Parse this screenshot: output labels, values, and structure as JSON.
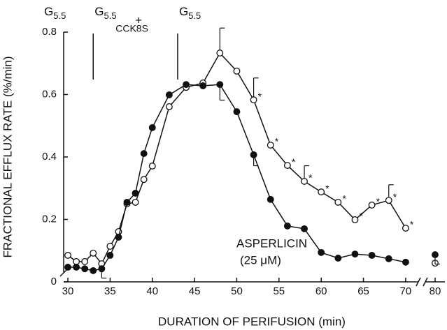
{
  "chart_data": {
    "type": "line",
    "x_label": "DURATION OF PERIFUSION (min)",
    "y_label": "FRACTIONAL EFFLUX RATE (%/min)",
    "xlim": [
      29.5,
      81
    ],
    "x_break": [
      71.5,
      79
    ],
    "xticks": [
      30,
      35,
      40,
      45,
      50,
      55,
      60,
      65,
      70,
      80
    ],
    "ylim": [
      0,
      0.8
    ],
    "yticks": [
      0,
      0.2,
      0.4,
      0.6,
      0.8
    ],
    "x": [
      30,
      31,
      32,
      33,
      34,
      35,
      36,
      37,
      38,
      39,
      40,
      42,
      44,
      46,
      48,
      50,
      52,
      54,
      56,
      58,
      60,
      62,
      64,
      66,
      68,
      70,
      80
    ],
    "series": [
      {
        "color": "#111111",
        "marker": "open",
        "error_side": "up",
        "values": [
          0.085,
          0.065,
          0.065,
          0.092,
          0.058,
          0.114,
          0.161,
          0.25,
          0.255,
          0.328,
          0.371,
          0.561,
          0.623,
          0.637,
          0.733,
          0.675,
          0.583,
          0.438,
          0.373,
          0.322,
          0.288,
          0.255,
          0.199,
          0.246,
          0.261,
          0.172,
          0.06
        ],
        "errors": [
          null,
          null,
          null,
          null,
          null,
          null,
          null,
          null,
          null,
          null,
          null,
          null,
          null,
          null,
          0.08,
          null,
          0.07,
          null,
          null,
          0.05,
          null,
          null,
          null,
          null,
          0.05,
          null,
          null
        ],
        "significant": [
          false,
          false,
          false,
          false,
          false,
          false,
          false,
          false,
          false,
          false,
          false,
          false,
          false,
          false,
          false,
          false,
          true,
          true,
          true,
          true,
          true,
          true,
          true,
          true,
          true,
          true,
          false
        ]
      },
      {
        "color": "#111111",
        "marker": "filled",
        "error_side": "down",
        "values": [
          0.047,
          0.047,
          0.042,
          0.036,
          0.042,
          0.085,
          0.143,
          0.255,
          0.284,
          0.411,
          0.494,
          0.599,
          0.632,
          0.628,
          0.632,
          0.545,
          0.407,
          0.264,
          0.179,
          0.17,
          0.094,
          0.076,
          0.089,
          0.085,
          0.074,
          0.063,
          0.087
        ],
        "errors": [
          null,
          null,
          null,
          null,
          0.03,
          null,
          null,
          null,
          null,
          null,
          null,
          null,
          null,
          null,
          0.05,
          null,
          0.035,
          null,
          null,
          null,
          null,
          null,
          null,
          null,
          null,
          null,
          0.03
        ]
      }
    ],
    "significance_mark": "*",
    "annotation": [
      "ASPERLICIN",
      "(25 μM)"
    ],
    "period_lines": [
      33,
      43
    ],
    "periods": [
      {
        "base": "G",
        "sub": "5.5"
      },
      {
        "base": "G",
        "sub": "5.5",
        "plus": "+",
        "agent": "CCK8S"
      },
      {
        "base": "G",
        "sub": "5.5"
      }
    ]
  }
}
